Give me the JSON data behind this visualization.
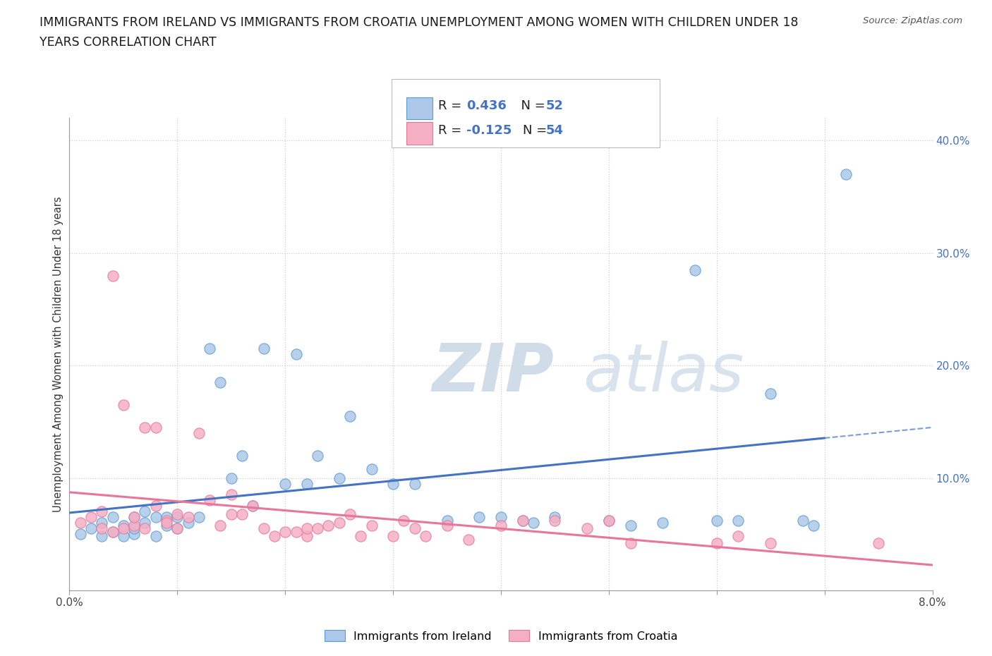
{
  "title_line1": "IMMIGRANTS FROM IRELAND VS IMMIGRANTS FROM CROATIA UNEMPLOYMENT AMONG WOMEN WITH CHILDREN UNDER 18",
  "title_line2": "YEARS CORRELATION CHART",
  "source": "Source: ZipAtlas.com",
  "ylabel": "Unemployment Among Women with Children Under 18 years",
  "xlim": [
    0.0,
    0.08
  ],
  "ylim": [
    0.0,
    0.42
  ],
  "ireland_R": 0.436,
  "ireland_N": 52,
  "croatia_R": -0.125,
  "croatia_N": 54,
  "ireland_color": "#adc8e8",
  "croatia_color": "#f5afc3",
  "ireland_edge_color": "#5b9bd5",
  "croatia_edge_color": "#e8759a",
  "ireland_line_color": "#4472c4",
  "croatia_line_color": "#e8759a",
  "ireland_x": [
    0.001,
    0.002,
    0.003,
    0.003,
    0.004,
    0.004,
    0.005,
    0.005,
    0.006,
    0.006,
    0.006,
    0.007,
    0.007,
    0.008,
    0.008,
    0.009,
    0.009,
    0.01,
    0.01,
    0.011,
    0.012,
    0.013,
    0.014,
    0.015,
    0.016,
    0.017,
    0.018,
    0.02,
    0.021,
    0.022,
    0.023,
    0.025,
    0.026,
    0.028,
    0.03,
    0.032,
    0.035,
    0.038,
    0.04,
    0.042,
    0.043,
    0.045,
    0.05,
    0.052,
    0.055,
    0.058,
    0.06,
    0.062,
    0.065,
    0.068,
    0.069,
    0.072
  ],
  "ireland_y": [
    0.05,
    0.055,
    0.048,
    0.06,
    0.052,
    0.065,
    0.048,
    0.058,
    0.05,
    0.065,
    0.055,
    0.06,
    0.07,
    0.048,
    0.065,
    0.058,
    0.065,
    0.065,
    0.055,
    0.06,
    0.065,
    0.215,
    0.185,
    0.1,
    0.12,
    0.075,
    0.215,
    0.095,
    0.21,
    0.095,
    0.12,
    0.1,
    0.155,
    0.108,
    0.095,
    0.095,
    0.062,
    0.065,
    0.065,
    0.062,
    0.06,
    0.065,
    0.062,
    0.058,
    0.06,
    0.285,
    0.062,
    0.062,
    0.175,
    0.062,
    0.058,
    0.37
  ],
  "croatia_x": [
    0.001,
    0.002,
    0.003,
    0.003,
    0.004,
    0.004,
    0.005,
    0.005,
    0.006,
    0.006,
    0.007,
    0.007,
    0.008,
    0.008,
    0.009,
    0.009,
    0.01,
    0.01,
    0.011,
    0.012,
    0.013,
    0.014,
    0.015,
    0.015,
    0.016,
    0.017,
    0.018,
    0.019,
    0.02,
    0.021,
    0.022,
    0.022,
    0.023,
    0.024,
    0.025,
    0.026,
    0.027,
    0.028,
    0.03,
    0.031,
    0.032,
    0.033,
    0.035,
    0.037,
    0.04,
    0.042,
    0.045,
    0.048,
    0.05,
    0.052,
    0.06,
    0.062,
    0.065,
    0.075
  ],
  "croatia_y": [
    0.06,
    0.065,
    0.055,
    0.07,
    0.052,
    0.28,
    0.055,
    0.165,
    0.058,
    0.065,
    0.145,
    0.055,
    0.075,
    0.145,
    0.062,
    0.06,
    0.068,
    0.055,
    0.065,
    0.14,
    0.08,
    0.058,
    0.068,
    0.085,
    0.068,
    0.075,
    0.055,
    0.048,
    0.052,
    0.052,
    0.048,
    0.055,
    0.055,
    0.058,
    0.06,
    0.068,
    0.048,
    0.058,
    0.048,
    0.062,
    0.055,
    0.048,
    0.058,
    0.045,
    0.058,
    0.062,
    0.062,
    0.055,
    0.062,
    0.042,
    0.042,
    0.048,
    0.042,
    0.042
  ]
}
